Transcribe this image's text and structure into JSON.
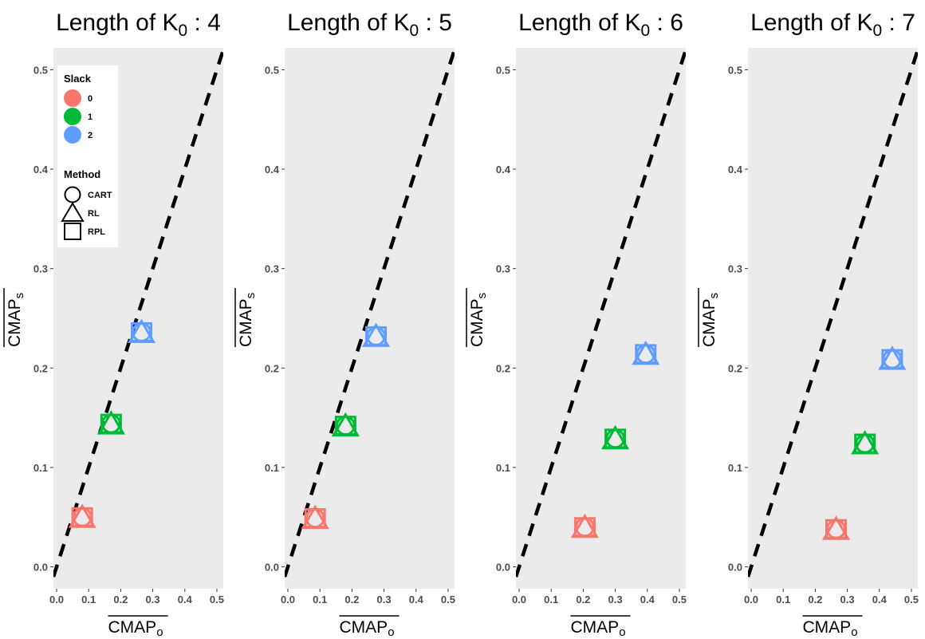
{
  "legend": {
    "slack_title": "Slack",
    "slack_items": [
      {
        "label": "0",
        "color": "#F8766D"
      },
      {
        "label": "1",
        "color": "#00BA38"
      },
      {
        "label": "2",
        "color": "#619CFF"
      }
    ],
    "method_title": "Method",
    "method_items": [
      {
        "label": "CART",
        "shape": "circle"
      },
      {
        "label": "RL",
        "shape": "triangle"
      },
      {
        "label": "RPL",
        "shape": "square"
      }
    ]
  },
  "chart_data": [
    {
      "type": "scatter",
      "title_main": "Length of K",
      "title_sub": "0",
      "title_tail": " : 4",
      "xlabel_main": "CMAP",
      "xlabel_sub": "o",
      "ylabel_main": "CMAP",
      "ylabel_sub": "s",
      "xlim": [
        -0.01,
        0.52
      ],
      "ylim": [
        -0.022,
        0.522
      ],
      "xticks": [
        "0.0",
        "0.1",
        "0.2",
        "0.3",
        "0.4",
        "0.5"
      ],
      "yticks": [
        "0.0",
        "0.1",
        "0.2",
        "0.3",
        "0.4",
        "0.5"
      ],
      "reference_line": "y = x",
      "grid": false,
      "points": [
        {
          "slack": "0",
          "x": 0.08,
          "y": 0.05
        },
        {
          "slack": "1",
          "x": 0.17,
          "y": 0.144
        },
        {
          "slack": "2",
          "x": 0.265,
          "y": 0.236
        }
      ]
    },
    {
      "type": "scatter",
      "title_main": "Length of K",
      "title_sub": "0",
      "title_tail": " : 5",
      "xlabel_main": "CMAP",
      "xlabel_sub": "o",
      "ylabel_main": "CMAP",
      "ylabel_sub": "s",
      "xlim": [
        -0.01,
        0.52
      ],
      "ylim": [
        -0.022,
        0.522
      ],
      "xticks": [
        "0.0",
        "0.1",
        "0.2",
        "0.3",
        "0.4",
        "0.5"
      ],
      "yticks": [
        "0.0",
        "0.1",
        "0.2",
        "0.3",
        "0.4",
        "0.5"
      ],
      "reference_line": "y = x",
      "grid": false,
      "points": [
        {
          "slack": "0",
          "x": 0.085,
          "y": 0.049
        },
        {
          "slack": "1",
          "x": 0.18,
          "y": 0.142
        },
        {
          "slack": "2",
          "x": 0.275,
          "y": 0.232
        }
      ]
    },
    {
      "type": "scatter",
      "title_main": "Length of K",
      "title_sub": "0",
      "title_tail": " : 6",
      "xlabel_main": "CMAP",
      "xlabel_sub": "o",
      "ylabel_main": "CMAP",
      "ylabel_sub": "s",
      "xlim": [
        -0.01,
        0.52
      ],
      "ylim": [
        -0.022,
        0.522
      ],
      "xticks": [
        "0.0",
        "0.1",
        "0.2",
        "0.3",
        "0.4",
        "0.5"
      ],
      "yticks": [
        "0.0",
        "0.1",
        "0.2",
        "0.3",
        "0.4",
        "0.5"
      ],
      "reference_line": "y = x",
      "grid": false,
      "points": [
        {
          "slack": "0",
          "x": 0.205,
          "y": 0.04
        },
        {
          "slack": "1",
          "x": 0.3,
          "y": 0.129
        },
        {
          "slack": "2",
          "x": 0.395,
          "y": 0.214
        }
      ]
    },
    {
      "type": "scatter",
      "title_main": "Length of K",
      "title_sub": "0",
      "title_tail": " : 7",
      "xlabel_main": "CMAP",
      "xlabel_sub": "o",
      "ylabel_main": "CMAP",
      "ylabel_sub": "s",
      "xlim": [
        -0.01,
        0.52
      ],
      "ylim": [
        -0.022,
        0.522
      ],
      "xticks": [
        "0.0",
        "0.1",
        "0.2",
        "0.3",
        "0.4",
        "0.5"
      ],
      "yticks": [
        "0.0",
        "0.1",
        "0.2",
        "0.3",
        "0.4",
        "0.5"
      ],
      "reference_line": "y = x",
      "grid": false,
      "points": [
        {
          "slack": "0",
          "x": 0.265,
          "y": 0.038
        },
        {
          "slack": "1",
          "x": 0.355,
          "y": 0.124
        },
        {
          "slack": "2",
          "x": 0.44,
          "y": 0.209
        }
      ]
    }
  ]
}
